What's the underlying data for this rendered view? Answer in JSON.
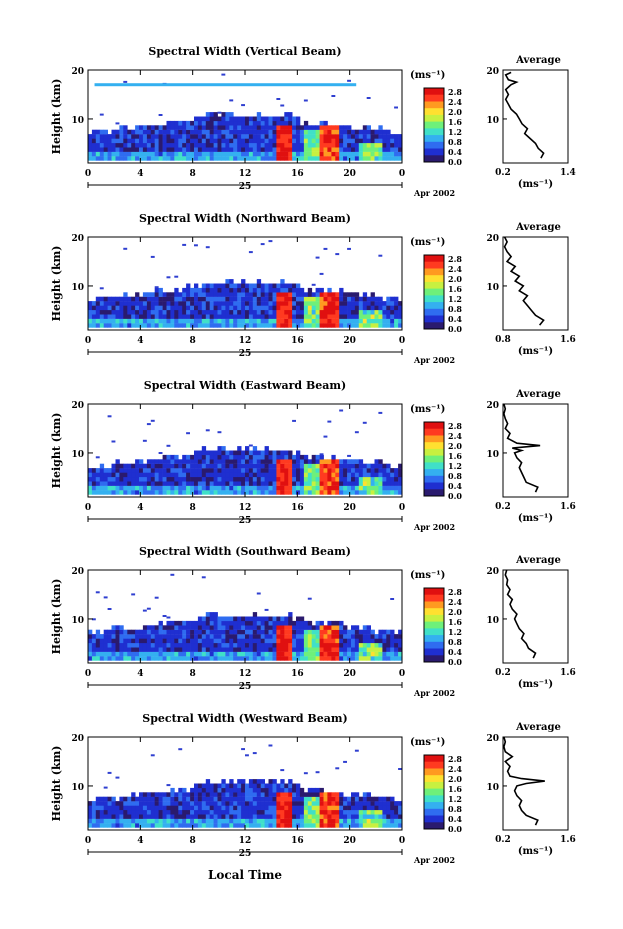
{
  "figure": {
    "date_label": "Apr 2002",
    "day_label": "25",
    "xaxis_title": "Local Time",
    "avg_title": "Average",
    "ylabel": "Height (km)",
    "units_label": "(ms⁻¹)",
    "avg_xlabel": "(ms⁻¹)"
  },
  "colorbar": {
    "ticks": [
      "2.8",
      "2.4",
      "2.0",
      "1.6",
      "1.2",
      "0.8",
      "0.4",
      "0.0"
    ],
    "colors": [
      "#2a1a6e",
      "#1f2fd0",
      "#2f6cf0",
      "#34b0f0",
      "#40e0c8",
      "#6ef07a",
      "#c8f040",
      "#ffe030",
      "#ff9a20",
      "#ff3a20",
      "#e01010"
    ]
  },
  "chart_data": [
    {
      "type": "heatmap",
      "title": "Spectral Width (Vertical Beam)",
      "x_ticks": [
        "0",
        "4",
        "8",
        "12",
        "16",
        "20",
        "0"
      ],
      "xlim": [
        0,
        24
      ],
      "y_ticks": [
        "20",
        "10"
      ],
      "ylim": [
        1,
        20
      ],
      "zlim": [
        0,
        2.8
      ],
      "average_profile": {
        "xlim": [
          0.2,
          1.4
        ],
        "x_ticks": [
          "0.2",
          "1.4"
        ],
        "y_ticks": [
          "20",
          "10"
        ],
        "points": [
          [
            0.9,
            2
          ],
          [
            0.95,
            3
          ],
          [
            0.85,
            4
          ],
          [
            0.8,
            5
          ],
          [
            0.7,
            6
          ],
          [
            0.6,
            7
          ],
          [
            0.65,
            8
          ],
          [
            0.55,
            9
          ],
          [
            0.5,
            10
          ],
          [
            0.45,
            11
          ],
          [
            0.35,
            12
          ],
          [
            0.3,
            13
          ],
          [
            0.25,
            14
          ],
          [
            0.3,
            15
          ],
          [
            0.25,
            16
          ],
          [
            0.35,
            17
          ],
          [
            0.45,
            17.5
          ],
          [
            0.3,
            18
          ],
          [
            0.25,
            19
          ],
          [
            0.35,
            19.5
          ]
        ]
      }
    },
    {
      "type": "heatmap",
      "title": "Spectral Width (Northward Beam)",
      "x_ticks": [
        "0",
        "4",
        "8",
        "12",
        "16",
        "20",
        "0"
      ],
      "xlim": [
        0,
        24
      ],
      "y_ticks": [
        "20",
        "10"
      ],
      "ylim": [
        1,
        20
      ],
      "zlim": [
        0,
        2.8
      ],
      "average_profile": {
        "xlim": [
          0.8,
          1.6
        ],
        "x_ticks": [
          "0.8",
          "1.6"
        ],
        "y_ticks": [
          "20",
          "10"
        ],
        "points": [
          [
            1.25,
            2
          ],
          [
            1.3,
            3
          ],
          [
            1.2,
            4
          ],
          [
            1.15,
            5
          ],
          [
            1.1,
            6
          ],
          [
            1.05,
            7
          ],
          [
            1.1,
            8
          ],
          [
            1.0,
            9
          ],
          [
            1.05,
            10
          ],
          [
            0.95,
            11
          ],
          [
            1.0,
            12
          ],
          [
            0.9,
            13
          ],
          [
            0.95,
            14
          ],
          [
            0.85,
            15
          ],
          [
            0.9,
            16
          ],
          [
            0.85,
            17
          ],
          [
            0.82,
            18
          ],
          [
            0.85,
            19
          ],
          [
            0.82,
            20
          ]
        ]
      }
    },
    {
      "type": "heatmap",
      "title": "Spectral Width (Eastward Beam)",
      "x_ticks": [
        "0",
        "4",
        "8",
        "12",
        "16",
        "20",
        "0"
      ],
      "xlim": [
        0,
        24
      ],
      "y_ticks": [
        "20",
        "10"
      ],
      "ylim": [
        1,
        20
      ],
      "zlim": [
        0,
        2.8
      ],
      "average_profile": {
        "xlim": [
          0.2,
          1.6
        ],
        "x_ticks": [
          "0.2",
          "1.6"
        ],
        "y_ticks": [
          "20",
          "10"
        ],
        "points": [
          [
            0.9,
            2
          ],
          [
            0.95,
            3
          ],
          [
            0.7,
            4
          ],
          [
            0.65,
            5
          ],
          [
            0.6,
            6
          ],
          [
            0.55,
            7
          ],
          [
            0.6,
            8
          ],
          [
            0.5,
            9
          ],
          [
            0.45,
            10
          ],
          [
            0.6,
            10.5
          ],
          [
            0.4,
            11
          ],
          [
            1.0,
            11.5
          ],
          [
            0.5,
            12
          ],
          [
            0.3,
            13
          ],
          [
            0.35,
            14
          ],
          [
            0.25,
            15
          ],
          [
            0.3,
            16
          ],
          [
            0.25,
            17
          ],
          [
            0.22,
            18
          ],
          [
            0.25,
            19
          ],
          [
            0.22,
            20
          ]
        ]
      }
    },
    {
      "type": "heatmap",
      "title": "Spectral Width (Southward Beam)",
      "x_ticks": [
        "0",
        "4",
        "8",
        "12",
        "16",
        "20",
        "0"
      ],
      "xlim": [
        0,
        24
      ],
      "y_ticks": [
        "20",
        "10"
      ],
      "ylim": [
        1,
        20
      ],
      "zlim": [
        0,
        2.8
      ],
      "average_profile": {
        "xlim": [
          0.2,
          1.6
        ],
        "x_ticks": [
          "0.2",
          "1.6"
        ],
        "y_ticks": [
          "20",
          "10"
        ],
        "points": [
          [
            0.85,
            2
          ],
          [
            0.9,
            3
          ],
          [
            0.75,
            4
          ],
          [
            0.7,
            5
          ],
          [
            0.6,
            6
          ],
          [
            0.65,
            7
          ],
          [
            0.55,
            8
          ],
          [
            0.5,
            9
          ],
          [
            0.45,
            10
          ],
          [
            0.5,
            11
          ],
          [
            0.4,
            12
          ],
          [
            0.35,
            13
          ],
          [
            0.4,
            14
          ],
          [
            0.3,
            15
          ],
          [
            0.35,
            16
          ],
          [
            0.28,
            17
          ],
          [
            0.3,
            18
          ],
          [
            0.25,
            19
          ],
          [
            0.28,
            20
          ]
        ]
      }
    },
    {
      "type": "heatmap",
      "title": "Spectral Width (Westward Beam)",
      "x_ticks": [
        "0",
        "4",
        "8",
        "12",
        "16",
        "20",
        "0"
      ],
      "xlim": [
        0,
        24
      ],
      "y_ticks": [
        "20",
        "10"
      ],
      "ylim": [
        1,
        20
      ],
      "zlim": [
        0,
        2.8
      ],
      "average_profile": {
        "xlim": [
          0.2,
          1.6
        ],
        "x_ticks": [
          "0.2",
          "1.6"
        ],
        "y_ticks": [
          "20",
          "10"
        ],
        "points": [
          [
            0.9,
            2
          ],
          [
            0.95,
            3
          ],
          [
            0.7,
            4
          ],
          [
            0.6,
            5
          ],
          [
            0.55,
            6
          ],
          [
            0.6,
            7
          ],
          [
            0.5,
            8
          ],
          [
            0.45,
            9
          ],
          [
            0.5,
            10
          ],
          [
            0.7,
            10.5
          ],
          [
            1.1,
            11
          ],
          [
            0.6,
            11.5
          ],
          [
            0.35,
            12
          ],
          [
            0.3,
            13
          ],
          [
            0.35,
            14
          ],
          [
            0.25,
            15
          ],
          [
            0.4,
            16
          ],
          [
            0.25,
            17
          ],
          [
            0.22,
            18
          ],
          [
            0.25,
            19
          ],
          [
            0.22,
            20
          ]
        ]
      }
    }
  ]
}
